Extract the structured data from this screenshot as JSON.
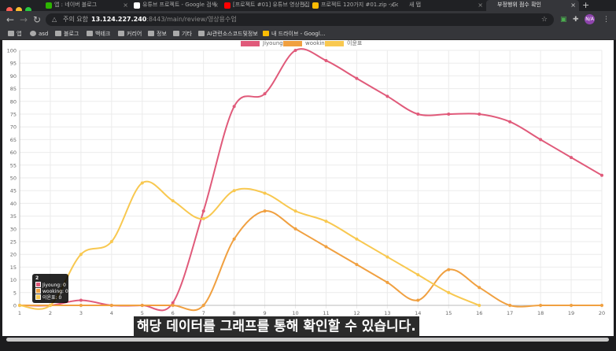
{
  "browser": {
    "tabs": [
      {
        "label": "앱 : 네이버 블로그",
        "icon_color": "#2db400"
      },
      {
        "label": "유튜브 프로젝트 - Google 검색",
        "icon_color": "#ffffff"
      },
      {
        "label": "[프로젝트 #01] 유튜브 영상편집",
        "icon_color": "#ff0000"
      },
      {
        "label": "프로젝트 120가지 #01.zip - Go",
        "icon_color": "#fbbc04"
      },
      {
        "label": "새 탭",
        "icon_color": "#888888"
      },
      {
        "label": "부정행위 점수 확인",
        "icon_color": "#888888"
      }
    ],
    "new_tab_symbol": "+",
    "security_label": "주의 요함",
    "url_host": "13.124.227.240",
    "url_rest": ":8443/main/review/영상용수업",
    "bookmarks": [
      "앱",
      "asd",
      "블로그",
      "백테크",
      "커리어",
      "정보",
      "기타",
      "AI관련소스코드및정보",
      "내 드라이브 - Googl..."
    ],
    "avatar_text": "N/A"
  },
  "caption": "해당 데이터를 그래프를 통해 확인할 수 있습니다.",
  "tooltip": {
    "title": "2",
    "rows": [
      "Jiyoung: 0",
      "wooking: 0",
      "이윤표: 0"
    ]
  },
  "chart_data": {
    "type": "line",
    "x": [
      1,
      2,
      3,
      4,
      5,
      6,
      7,
      8,
      9,
      10,
      11,
      12,
      13,
      14,
      15,
      16,
      17,
      18,
      19,
      20
    ],
    "ylim": [
      0,
      100
    ],
    "yticks": [
      0,
      5,
      10,
      15,
      20,
      25,
      30,
      35,
      40,
      45,
      50,
      55,
      60,
      65,
      70,
      75,
      80,
      85,
      90,
      95,
      100
    ],
    "legend_position": "top",
    "grid": true,
    "series": [
      {
        "name": "Jiyoung",
        "color": "#e05a7a",
        "values": [
          0,
          0,
          2,
          0,
          0,
          1,
          37,
          78,
          83,
          100,
          96,
          89,
          82,
          75,
          75,
          75,
          72,
          65,
          58,
          51
        ]
      },
      {
        "name": "wooking",
        "color": "#f0a040",
        "values": [
          0,
          0,
          0,
          0,
          0,
          0,
          0,
          26,
          37,
          30,
          23,
          16,
          9,
          2,
          14,
          7,
          0,
          0,
          0,
          0
        ]
      },
      {
        "name": "이윤표",
        "color": "#f8c850",
        "values": [
          0,
          0,
          20,
          25,
          48,
          41,
          34,
          45,
          44,
          37,
          33,
          26,
          19,
          12,
          5,
          0,
          null,
          null,
          null,
          null
        ]
      }
    ]
  }
}
